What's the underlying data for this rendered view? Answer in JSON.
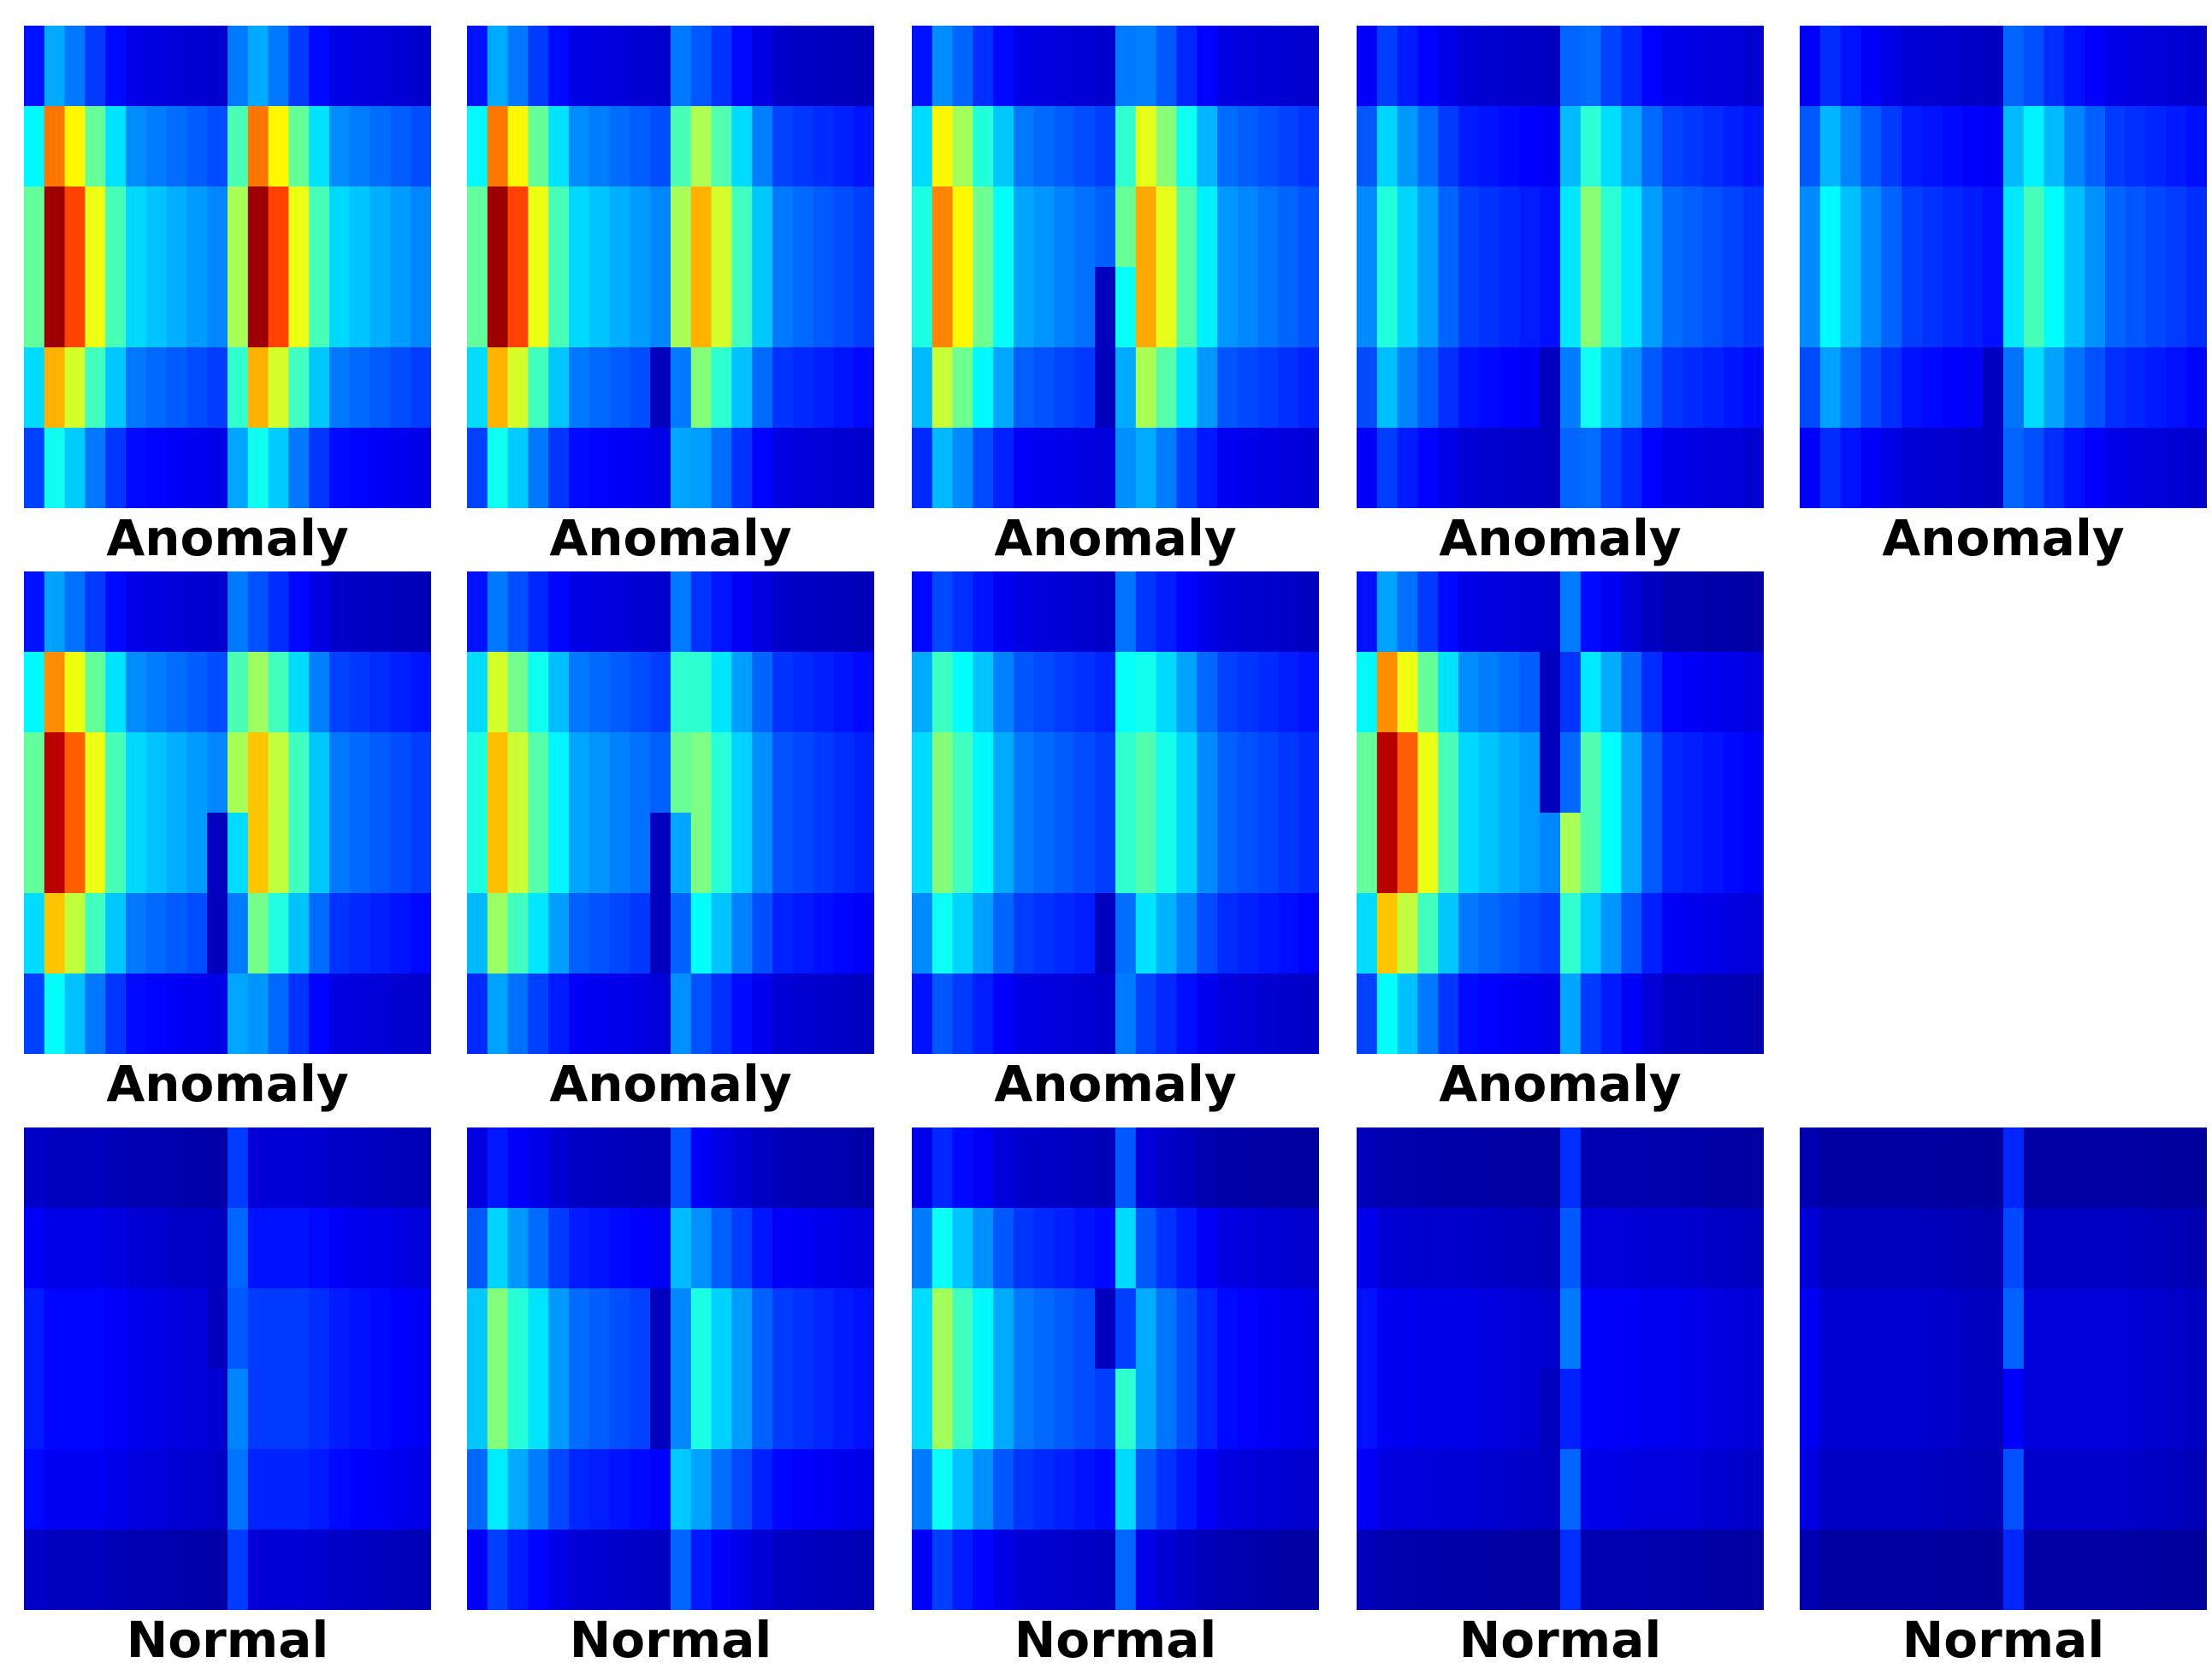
{
  "figure": {
    "colormap": "jet",
    "value_range": [
      0,
      1
    ],
    "grid_rows": 6,
    "grid_columns": 20
  },
  "chart_data": [
    {
      "type": "heatmap",
      "label": "Anomaly",
      "block_rows": [
        0.3,
        0.78,
        1.0,
        1.0,
        0.72,
        0.4
      ],
      "peak_columns": [
        0.72,
        0.6,
        0.45,
        0.33,
        0.25
      ],
      "split_column": 10,
      "second_gain": 1.0,
      "dip_rows": []
    },
    {
      "type": "heatmap",
      "label": "Anomaly",
      "block_rows": [
        0.3,
        0.78,
        1.0,
        1.0,
        0.72,
        0.4
      ],
      "peak_columns": [
        0.72,
        0.6,
        0.45,
        0.33,
        0.25
      ],
      "split_column": 10,
      "second_gain": 0.72,
      "dip_rows": [
        4
      ]
    },
    {
      "type": "heatmap",
      "label": "Anomaly",
      "block_rows": [
        0.3,
        0.72,
        0.85,
        0.85,
        0.65,
        0.35
      ],
      "peak_columns": [
        0.65,
        0.55,
        0.42,
        0.33,
        0.25
      ],
      "split_column": 10,
      "second_gain": 0.95,
      "dip_rows": [
        3,
        4
      ]
    },
    {
      "type": "heatmap",
      "label": "Anomaly",
      "block_rows": [
        0.25,
        0.45,
        0.55,
        0.55,
        0.42,
        0.25
      ],
      "peak_columns": [
        0.55,
        0.45,
        0.38,
        0.3,
        0.25
      ],
      "split_column": 10,
      "second_gain": 1.25,
      "dip_rows": [
        4
      ]
    },
    {
      "type": "heatmap",
      "label": "Anomaly",
      "block_rows": [
        0.25,
        0.45,
        0.55,
        0.55,
        0.42,
        0.25
      ],
      "peak_columns": [
        0.5,
        0.42,
        0.35,
        0.3,
        0.25
      ],
      "split_column": 10,
      "second_gain": 1.2,
      "dip_rows": [
        4
      ]
    },
    {
      "type": "heatmap",
      "label": "Anomaly",
      "block_rows": [
        0.3,
        0.78,
        1.0,
        1.0,
        0.72,
        0.4
      ],
      "peak_columns": [
        0.7,
        0.58,
        0.45,
        0.33,
        0.25
      ],
      "split_column": 10,
      "second_gain": 0.72,
      "dip_rows": [
        3,
        4
      ]
    },
    {
      "type": "heatmap",
      "label": "Anomaly",
      "block_rows": [
        0.3,
        0.72,
        0.85,
        0.85,
        0.65,
        0.35
      ],
      "peak_columns": [
        0.6,
        0.5,
        0.4,
        0.32,
        0.25
      ],
      "split_column": 10,
      "second_gain": 0.72,
      "dip_rows": [
        3,
        4
      ]
    },
    {
      "type": "heatmap",
      "label": "Anomaly",
      "block_rows": [
        0.28,
        0.62,
        0.72,
        0.72,
        0.55,
        0.3
      ],
      "peak_columns": [
        0.52,
        0.45,
        0.38,
        0.3,
        0.25
      ],
      "split_column": 10,
      "second_gain": 0.9,
      "dip_rows": [
        4
      ]
    },
    {
      "type": "heatmap",
      "label": "Anomaly",
      "block_rows": [
        0.3,
        0.78,
        1.0,
        1.0,
        0.72,
        0.4
      ],
      "peak_columns": [
        0.7,
        0.58,
        0.45,
        0.33,
        0.25
      ],
      "split_column": 10,
      "second_gain": 0.48,
      "dip_rows": [
        1,
        2
      ]
    },
    {
      "type": "heatmap",
      "label": "Normal",
      "block_rows": [
        0.15,
        0.25,
        0.32,
        0.32,
        0.28,
        0.15
      ],
      "peak_columns": [
        0.3,
        0.3,
        0.3,
        0.28,
        0.25
      ],
      "split_column": 10,
      "second_gain": 1.4,
      "dip_rows": [
        2
      ]
    },
    {
      "type": "heatmap",
      "label": "Normal",
      "block_rows": [
        0.2,
        0.45,
        0.68,
        0.68,
        0.48,
        0.25
      ],
      "peak_columns": [
        0.55,
        0.45,
        0.38,
        0.3,
        0.25
      ],
      "split_column": 10,
      "second_gain": 0.8,
      "dip_rows": [
        2,
        3
      ]
    },
    {
      "type": "heatmap",
      "label": "Normal",
      "block_rows": [
        0.22,
        0.52,
        0.72,
        0.72,
        0.52,
        0.25
      ],
      "peak_columns": [
        0.55,
        0.45,
        0.38,
        0.3,
        0.25
      ],
      "split_column": 10,
      "second_gain": 0.55,
      "dip_rows": [
        2
      ]
    },
    {
      "type": "heatmap",
      "label": "Normal",
      "block_rows": [
        0.12,
        0.22,
        0.3,
        0.3,
        0.25,
        0.12
      ],
      "peak_columns": [
        0.28,
        0.27,
        0.26,
        0.25,
        0.25
      ],
      "split_column": 10,
      "second_gain": 1.1,
      "dip_rows": [
        3
      ]
    },
    {
      "type": "heatmap",
      "label": "Normal",
      "block_rows": [
        0.1,
        0.18,
        0.24,
        0.24,
        0.2,
        0.1
      ],
      "peak_columns": [
        0.25,
        0.25,
        0.25,
        0.25,
        0.25
      ],
      "split_column": 10,
      "second_gain": 1.1,
      "dip_rows": [
        3
      ]
    }
  ]
}
